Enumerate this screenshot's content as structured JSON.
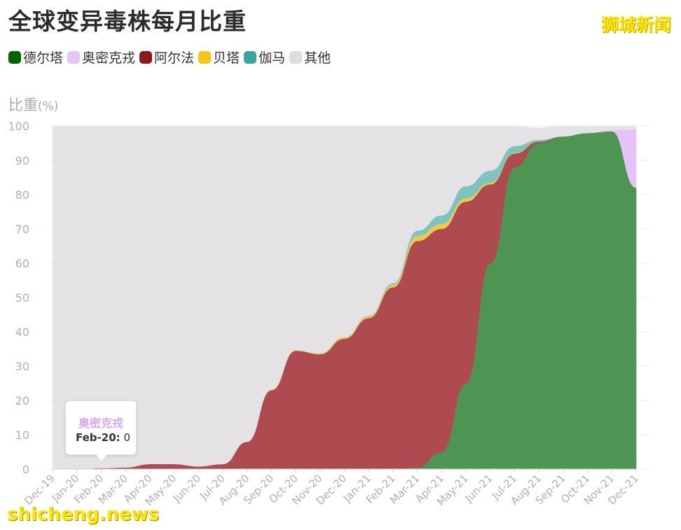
{
  "title": "全球变异毒株每月比重",
  "brand": "狮城新闻",
  "watermark": "shicheng.news",
  "legend": [
    {
      "label": "德尔塔",
      "color": "#006400"
    },
    {
      "label": "奥密克戎",
      "color": "#e3c3f8"
    },
    {
      "label": "阿尔法",
      "color": "#8b1a1a"
    },
    {
      "label": "贝塔",
      "color": "#f5c518"
    },
    {
      "label": "伽马",
      "color": "#3aa6a0"
    },
    {
      "label": "其他",
      "color": "#dddddd"
    }
  ],
  "tooltip": {
    "series": "奥密克戎",
    "month": "Feb-20:",
    "value": "0"
  },
  "chart_data": {
    "type": "area",
    "stacked": true,
    "ylabel": "比重",
    "ylabel_unit": "(%)",
    "ylim": [
      0,
      100
    ],
    "yticks": [
      0,
      10,
      20,
      30,
      40,
      50,
      60,
      70,
      80,
      90,
      100
    ],
    "grid": true,
    "x": [
      "Dec-19",
      "Jan-20",
      "Feb-20",
      "Mar-20",
      "Apr-20",
      "May-20",
      "Jun-20",
      "Jul-20",
      "Aug-20",
      "Sep-20",
      "Oct-20",
      "Nov-20",
      "Dec-20",
      "Jan-21",
      "Feb-21",
      "Mar-21",
      "Apr-21",
      "May-21",
      "Jun-21",
      "Jul-21",
      "Aug-21",
      "Sep-21",
      "Oct-21",
      "Nov-21",
      "Dec-21"
    ],
    "series": [
      {
        "name": "德尔塔",
        "color": "#4e9452",
        "values": [
          0,
          0,
          0,
          0,
          0,
          0,
          0,
          0,
          0,
          0,
          0,
          0,
          0,
          0,
          0,
          0.5,
          5,
          25,
          60,
          88,
          95,
          97,
          98,
          98.5,
          82
        ]
      },
      {
        "name": "阿尔法",
        "color": "#ad4b51",
        "values": [
          0,
          0,
          0.3,
          0.5,
          1.5,
          1.5,
          0.8,
          1.5,
          8,
          23,
          34.5,
          33.5,
          38,
          44,
          53,
          66,
          65,
          53,
          23,
          4,
          0.5,
          0,
          0,
          0,
          0
        ]
      },
      {
        "name": "贝塔",
        "color": "#efc84f",
        "values": [
          0,
          0,
          0,
          0,
          0,
          0,
          0,
          0,
          0,
          0.2,
          0.2,
          0.3,
          0.5,
          0.5,
          0.7,
          1.5,
          1.5,
          1,
          0.5,
          0.2,
          0,
          0,
          0,
          0,
          0
        ]
      },
      {
        "name": "伽马",
        "color": "#7cc5bf",
        "values": [
          0,
          0,
          0,
          0,
          0,
          0,
          0,
          0,
          0,
          0,
          0,
          0,
          0,
          0.2,
          0.5,
          1.5,
          2.5,
          3.5,
          3.5,
          2,
          0.5,
          0,
          0,
          0,
          0
        ]
      },
      {
        "name": "奥密克戎",
        "color": "#e3c3f8",
        "values": [
          0,
          0,
          0,
          0,
          0,
          0,
          0,
          0,
          0,
          0,
          0,
          0,
          0,
          0,
          0,
          0,
          0,
          0,
          0,
          0,
          0,
          0,
          0,
          0.3,
          17
        ]
      },
      {
        "name": "其他",
        "color": "#e5e2e5",
        "values": [
          100,
          100,
          99.7,
          99.5,
          98.5,
          98.5,
          99.2,
          98.5,
          92,
          76.8,
          65.3,
          66.2,
          61.5,
          55.3,
          45.8,
          30.5,
          26,
          17.5,
          13,
          5.8,
          3.5,
          3,
          2,
          1.2,
          1
        ]
      }
    ]
  }
}
